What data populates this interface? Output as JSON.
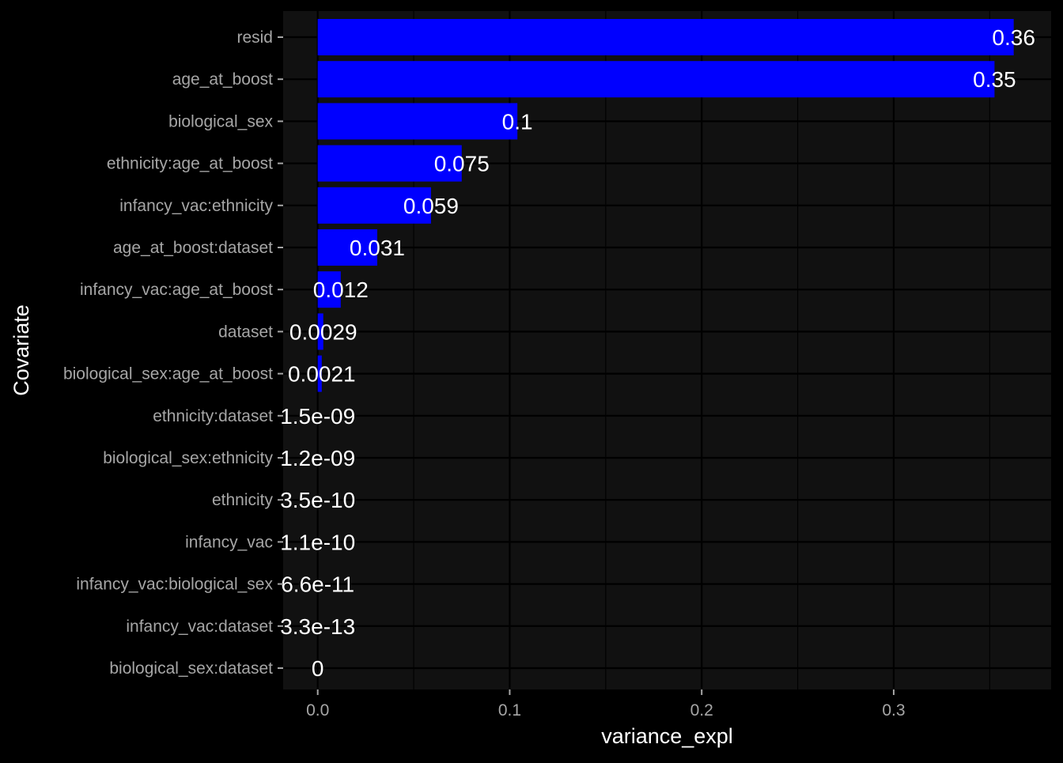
{
  "chart_data": {
    "type": "bar",
    "orientation": "horizontal",
    "xlabel": "variance_expl",
    "ylabel": "Covariate",
    "xlim": [
      -0.018,
      0.382
    ],
    "xticks": [
      0.0,
      0.1,
      0.2,
      0.3
    ],
    "xtick_labels": [
      "0.0",
      "0.1",
      "0.2",
      "0.3"
    ],
    "grid": true,
    "legend": "none",
    "categories": [
      "resid",
      "age_at_boost",
      "biological_sex",
      "ethnicity:age_at_boost",
      "infancy_vac:ethnicity",
      "age_at_boost:dataset",
      "infancy_vac:age_at_boost",
      "dataset",
      "biological_sex:age_at_boost",
      "ethnicity:dataset",
      "biological_sex:ethnicity",
      "ethnicity",
      "infancy_vac",
      "infancy_vac:biological_sex",
      "infancy_vac:dataset",
      "biological_sex:dataset"
    ],
    "values": [
      0.3625,
      0.3525,
      0.104,
      0.075,
      0.059,
      0.031,
      0.012,
      0.0029,
      0.0021,
      1.5e-09,
      1.2e-09,
      3.5e-10,
      1.1e-10,
      6.6e-11,
      3.3e-13,
      0
    ],
    "value_labels": [
      "0.36",
      "0.35",
      "0.1",
      "0.075",
      "0.059",
      "0.031",
      "0.012",
      "0.0029",
      "0.0021",
      "1.5e-09",
      "1.2e-09",
      "3.5e-10",
      "1.1e-10",
      "6.6e-11",
      "3.3e-13",
      "0"
    ],
    "colors": {
      "bar": "#0000FF",
      "panel": "#111111",
      "background": "#000000",
      "grid": "#000000",
      "tick_label": "#A6A6A6",
      "value_label": "#FFFFFF",
      "axis_title": "#FFFFFF"
    }
  }
}
